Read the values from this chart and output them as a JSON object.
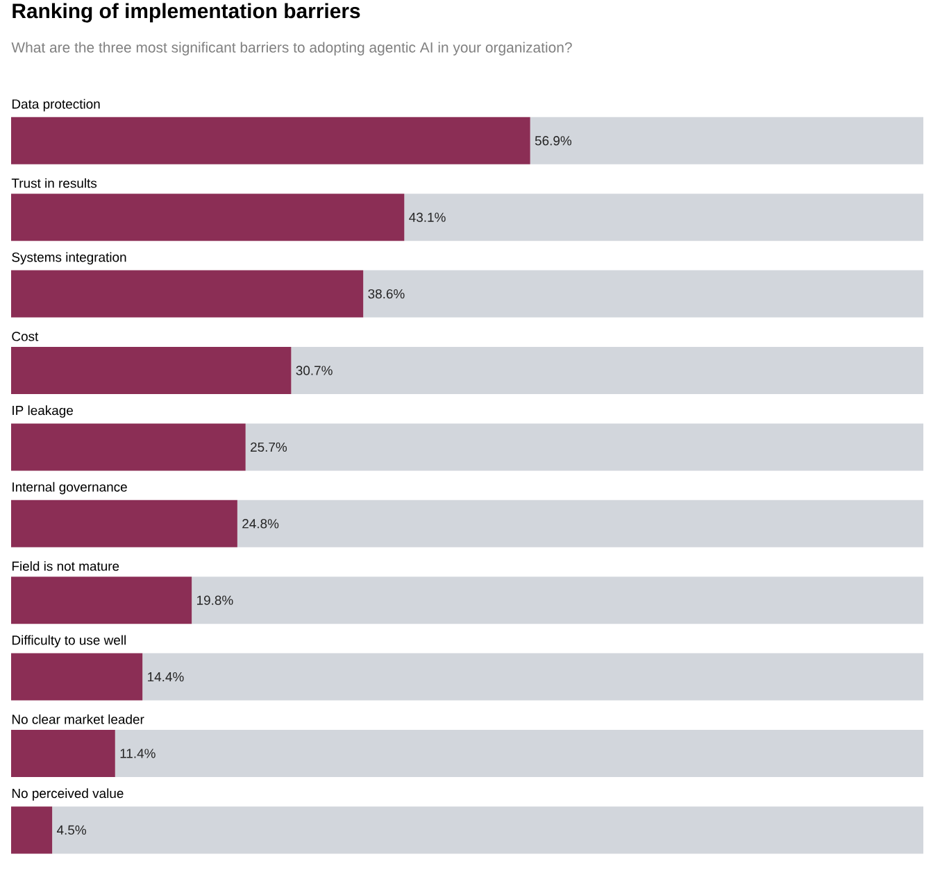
{
  "chart_data": {
    "type": "bar",
    "orientation": "horizontal",
    "title": "Ranking of implementation barriers",
    "subtitle": "What are the three most significant barriers to adopting agentic AI in your organization?",
    "categories": [
      "Data protection",
      "Trust in results",
      "Systems integration",
      "Cost",
      "IP leakage",
      "Internal governance",
      "Field is not mature",
      "Difficulty to use well",
      "No clear market leader",
      "No perceived value"
    ],
    "xlim": [
      0,
      100
    ],
    "stacked": true,
    "series": [
      {
        "color": "#8b2e55",
        "values": [
          56.9,
          43.1,
          38.6,
          30.7,
          25.7,
          24.8,
          19.8,
          14.4,
          11.4,
          4.5
        ],
        "value_labels": [
          "56.9%",
          "43.1%",
          "38.6%",
          "30.7%",
          "25.7%",
          "24.8%",
          "19.8%",
          "14.4%",
          "11.4%",
          "4.5%"
        ]
      },
      {
        "color": "#d2d6dc",
        "values": [
          43.1,
          56.9,
          61.4,
          69.3,
          74.3,
          75.2,
          80.2,
          85.6,
          88.6,
          95.5
        ]
      }
    ]
  }
}
